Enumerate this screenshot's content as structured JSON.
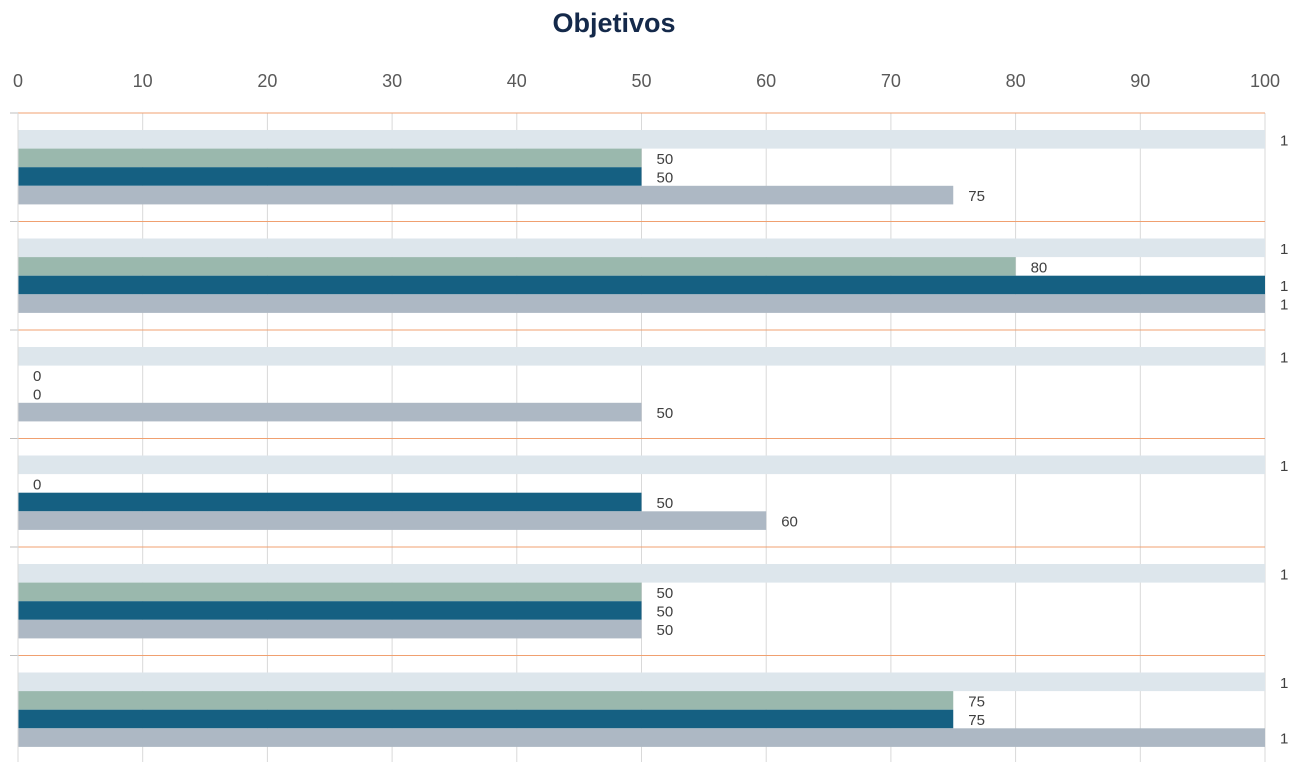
{
  "chart_data": {
    "type": "hbar",
    "title": "Objetivos",
    "categories": [
      null,
      null,
      null,
      null,
      null,
      null
    ],
    "series": [
      {
        "color": "#dde6ec",
        "values": [
          100,
          100,
          100,
          100,
          100,
          100
        ]
      },
      {
        "color": "#9ab8ad",
        "values": [
          50,
          80,
          0,
          0,
          50,
          75
        ]
      },
      {
        "color": "#156082",
        "values": [
          50,
          100,
          0,
          50,
          50,
          75
        ]
      },
      {
        "color": "#adb8c4",
        "values": [
          75,
          100,
          50,
          60,
          50,
          100
        ]
      }
    ],
    "xlim": [
      0,
      100
    ],
    "xticks": [
      0,
      10,
      20,
      30,
      40,
      50,
      60,
      70,
      80,
      90,
      100
    ],
    "grid": true
  }
}
